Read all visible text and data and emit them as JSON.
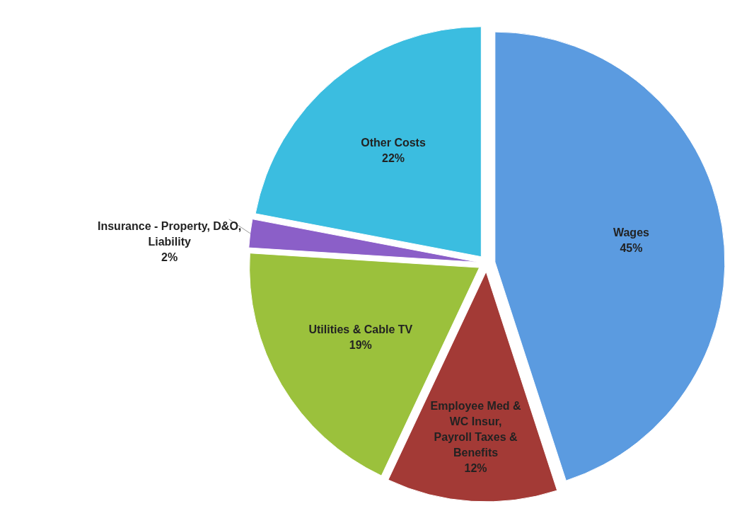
{
  "chart_data": {
    "type": "pie",
    "categories": [
      "Wages",
      "Employee Med & WC Insur, Payroll Taxes & Benefits",
      "Utilities & Cable TV",
      "Insurance - Property, D&O, Liability",
      "Other Costs"
    ],
    "values": [
      45,
      12,
      19,
      2,
      22
    ],
    "colors": [
      "#5b9be0",
      "#a33a36",
      "#9bc13c",
      "#8b5fc8",
      "#3bbde0"
    ],
    "value_labels": [
      "45%",
      "12%",
      "19%",
      "2%",
      "22%"
    ]
  }
}
